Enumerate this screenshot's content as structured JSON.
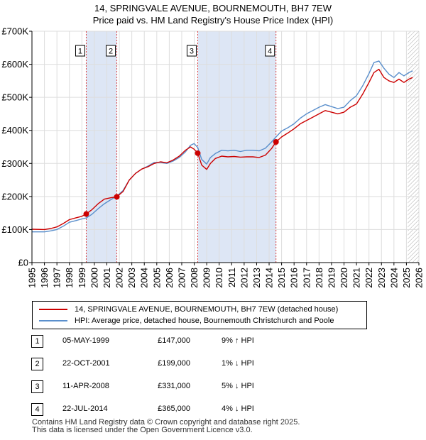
{
  "title_line1": "14, SPRINGVALE AVENUE, BOURNEMOUTH, BH7 7EW",
  "title_line2": "Price paid vs. HM Land Registry's House Price Index (HPI)",
  "colors": {
    "price": "#cc0000",
    "hpi": "#5a8fcc",
    "shade": "#dde6f5",
    "grid": "#dddddd",
    "vline": "#dd4444"
  },
  "chart_data": {
    "type": "line",
    "title": "14, SPRINGVALE AVENUE, BOURNEMOUTH, BH7 7EW — Price paid vs. HM Land Registry's House Price Index (HPI)",
    "xlabel": "",
    "ylabel": "",
    "xlim": [
      1995,
      2026
    ],
    "ylim": [
      0,
      700000
    ],
    "y_ticks": [
      0,
      100000,
      200000,
      300000,
      400000,
      500000,
      600000,
      700000
    ],
    "y_tick_labels": [
      "£0",
      "£100K",
      "£200K",
      "£300K",
      "£400K",
      "£500K",
      "£600K",
      "£700K"
    ],
    "x_ticks": [
      1995,
      1996,
      1997,
      1998,
      1999,
      2000,
      2001,
      2002,
      2003,
      2004,
      2005,
      2006,
      2007,
      2008,
      2009,
      2010,
      2011,
      2012,
      2013,
      2014,
      2015,
      2016,
      2017,
      2018,
      2019,
      2020,
      2021,
      2022,
      2023,
      2024,
      2025,
      2026
    ],
    "grid": true,
    "series": [
      {
        "name": "14, SPRINGVALE AVENUE, BOURNEMOUTH, BH7 7EW (detached house)",
        "color": "#cc0000",
        "x": [
          1995.0,
          1996.0,
          1996.5,
          1997.0,
          1997.5,
          1998.0,
          1998.5,
          1999.0,
          1999.35,
          1999.8,
          2000.3,
          2000.8,
          2001.3,
          2001.8,
          2002.3,
          2002.8,
          2003.3,
          2003.8,
          2004.3,
          2004.8,
          2005.3,
          2005.8,
          2006.3,
          2006.8,
          2007.3,
          2007.7,
          2008.0,
          2008.28,
          2008.6,
          2009.0,
          2009.3,
          2009.7,
          2010.2,
          2010.7,
          2011.2,
          2011.7,
          2012.2,
          2012.7,
          2013.2,
          2013.7,
          2014.2,
          2014.55,
          2015.0,
          2015.5,
          2016.0,
          2016.5,
          2017.0,
          2017.5,
          2018.0,
          2018.5,
          2019.0,
          2019.5,
          2020.0,
          2020.5,
          2021.0,
          2021.5,
          2022.0,
          2022.4,
          2022.8,
          2023.2,
          2023.6,
          2024.0,
          2024.4,
          2024.8,
          2025.2,
          2025.5
        ],
        "y": [
          101000,
          100000,
          103000,
          108000,
          118000,
          130000,
          135000,
          140000,
          147000,
          160000,
          178000,
          192000,
          196000,
          199000,
          215000,
          250000,
          270000,
          283000,
          290000,
          300000,
          305000,
          302000,
          310000,
          322000,
          340000,
          350000,
          343000,
          331000,
          295000,
          282000,
          300000,
          315000,
          322000,
          320000,
          321000,
          319000,
          320000,
          320000,
          318000,
          325000,
          345000,
          365000,
          380000,
          392000,
          405000,
          420000,
          430000,
          440000,
          450000,
          460000,
          455000,
          450000,
          455000,
          470000,
          480000,
          510000,
          545000,
          575000,
          585000,
          560000,
          550000,
          545000,
          555000,
          545000,
          555000,
          560000
        ]
      },
      {
        "name": "HPI: Average price, detached house, Bournemouth Christchurch and Poole",
        "color": "#5a8fcc",
        "x": [
          1995.0,
          1996.0,
          1996.5,
          1997.0,
          1997.5,
          1998.0,
          1998.5,
          1999.0,
          1999.35,
          1999.8,
          2000.3,
          2000.8,
          2001.3,
          2001.8,
          2002.3,
          2002.8,
          2003.3,
          2003.8,
          2004.3,
          2004.8,
          2005.3,
          2005.8,
          2006.3,
          2006.8,
          2007.3,
          2007.7,
          2008.0,
          2008.28,
          2008.6,
          2009.0,
          2009.3,
          2009.7,
          2010.2,
          2010.7,
          2011.2,
          2011.7,
          2012.2,
          2012.7,
          2013.2,
          2013.7,
          2014.2,
          2014.55,
          2015.0,
          2015.5,
          2016.0,
          2016.5,
          2017.0,
          2017.5,
          2018.0,
          2018.5,
          2019.0,
          2019.5,
          2020.0,
          2020.5,
          2021.0,
          2021.5,
          2022.0,
          2022.4,
          2022.8,
          2023.2,
          2023.6,
          2024.0,
          2024.4,
          2024.8,
          2025.2,
          2025.5
        ],
        "y": [
          93000,
          93000,
          96000,
          100000,
          110000,
          122000,
          127000,
          132000,
          135000,
          146000,
          163000,
          178000,
          190000,
          201000,
          218000,
          250000,
          270000,
          283000,
          292000,
          303000,
          303000,
          300000,
          307000,
          318000,
          335000,
          355000,
          360000,
          348000,
          312000,
          298000,
          318000,
          330000,
          340000,
          338000,
          340000,
          336000,
          340000,
          340000,
          338000,
          346000,
          365000,
          380000,
          398000,
          408000,
          420000,
          437000,
          450000,
          460000,
          470000,
          478000,
          472000,
          466000,
          470000,
          490000,
          505000,
          535000,
          572000,
          605000,
          610000,
          588000,
          570000,
          560000,
          575000,
          565000,
          575000,
          580000
        ]
      }
    ],
    "shaded_ranges": [
      [
        1999.35,
        2001.8
      ],
      [
        2008.28,
        2014.55
      ]
    ],
    "hatched_from": 2025.1,
    "sale_markers": [
      {
        "label": "1",
        "x": 1999.35,
        "y": 147000
      },
      {
        "label": "2",
        "x": 2001.8,
        "y": 199000
      },
      {
        "label": "3",
        "x": 2008.28,
        "y": 331000
      },
      {
        "label": "4",
        "x": 2014.55,
        "y": 365000
      }
    ]
  },
  "legend": {
    "price_label": "14, SPRINGVALE AVENUE, BOURNEMOUTH, BH7 7EW (detached house)",
    "hpi_label": "HPI: Average price, detached house, Bournemouth Christchurch and Poole"
  },
  "sales": [
    {
      "num": "1",
      "date": "05-MAY-1999",
      "price": "£147,000",
      "delta": "9% ↑ HPI"
    },
    {
      "num": "2",
      "date": "22-OCT-2001",
      "price": "£199,000",
      "delta": "1% ↓ HPI"
    },
    {
      "num": "3",
      "date": "11-APR-2008",
      "price": "£331,000",
      "delta": "5% ↓ HPI"
    },
    {
      "num": "4",
      "date": "22-JUL-2014",
      "price": "£365,000",
      "delta": "4% ↓ HPI"
    }
  ],
  "footer": {
    "line1": "Contains HM Land Registry data © Crown copyright and database right 2025.",
    "line2": "This data is licensed under the Open Government Licence v3.0."
  }
}
